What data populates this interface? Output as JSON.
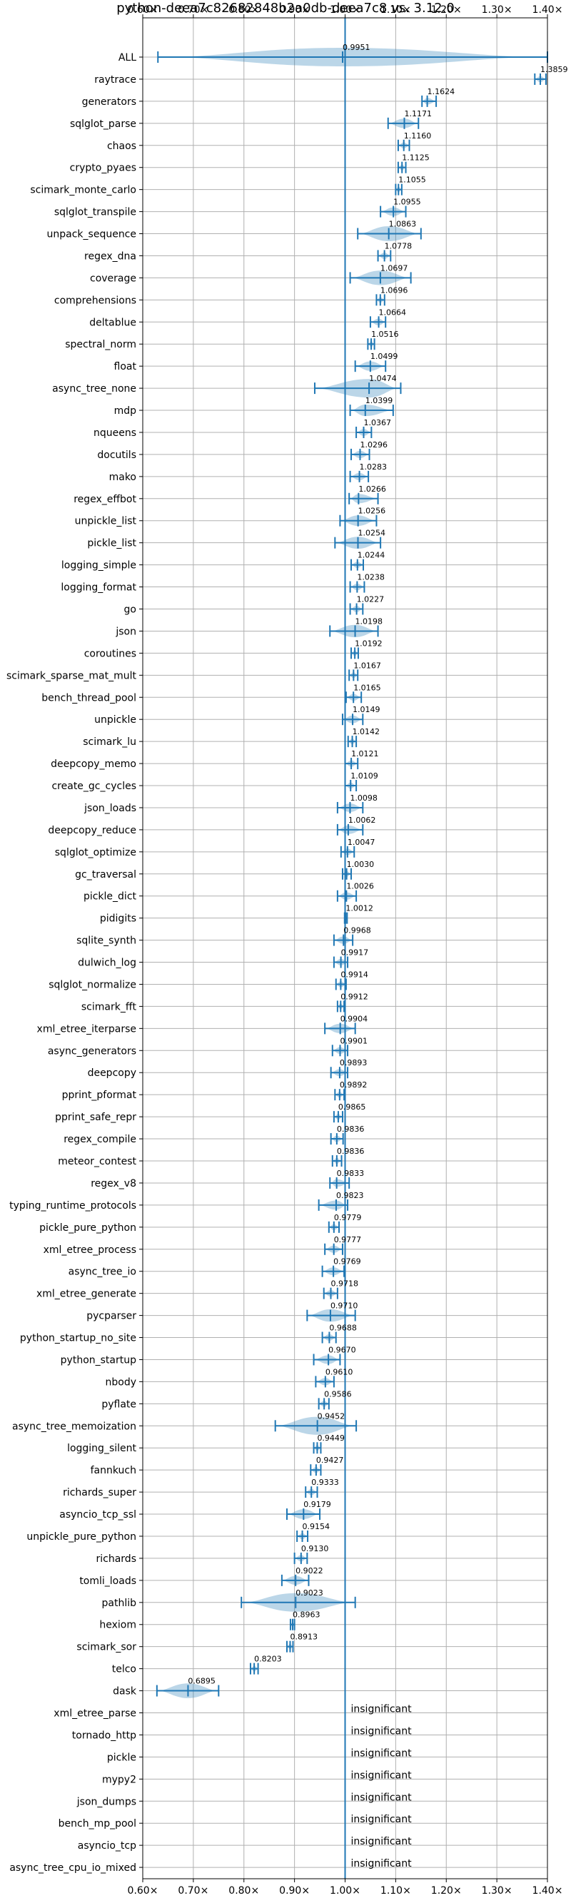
{
  "chart_data": {
    "type": "violin",
    "title": "python-deea7c82682848b2a0db-deea7c8 vs. 3.12.0",
    "xlim": [
      0.6,
      1.4
    ],
    "x_ticks": [
      0.6,
      0.7,
      0.8,
      0.9,
      1.0,
      1.1,
      1.2,
      1.3,
      1.4
    ],
    "x_tick_labels": [
      "0.60×",
      "0.70×",
      "0.80×",
      "0.90×",
      "1.00×",
      "1.10×",
      "1.20×",
      "1.30×",
      "1.40×"
    ],
    "reference_x": 1.0,
    "grid": true,
    "insignificant_label": "insignificant",
    "benchmarks": [
      {
        "name": "ALL",
        "value": 0.9951,
        "label": "0.9951",
        "low": 0.63,
        "high": 1.4
      },
      {
        "name": "raytrace",
        "value": 1.3859,
        "label": "1.3859",
        "low": 1.375,
        "high": 1.397
      },
      {
        "name": "generators",
        "value": 1.1624,
        "label": "1.1624",
        "low": 1.152,
        "high": 1.18
      },
      {
        "name": "sqlglot_parse",
        "value": 1.1171,
        "label": "1.1171",
        "low": 1.085,
        "high": 1.145
      },
      {
        "name": "chaos",
        "value": 1.116,
        "label": "1.1160",
        "low": 1.105,
        "high": 1.127
      },
      {
        "name": "crypto_pyaes",
        "value": 1.1125,
        "label": "1.1125",
        "low": 1.105,
        "high": 1.12
      },
      {
        "name": "scimark_monte_carlo",
        "value": 1.1055,
        "label": "1.1055",
        "low": 1.1,
        "high": 1.112
      },
      {
        "name": "sqlglot_transpile",
        "value": 1.0955,
        "label": "1.0955",
        "low": 1.07,
        "high": 1.12
      },
      {
        "name": "unpack_sequence",
        "value": 1.0863,
        "label": "1.0863",
        "low": 1.025,
        "high": 1.15
      },
      {
        "name": "regex_dna",
        "value": 1.0778,
        "label": "1.0778",
        "low": 1.065,
        "high": 1.09
      },
      {
        "name": "coverage",
        "value": 1.0697,
        "label": "1.0697",
        "low": 1.01,
        "high": 1.13
      },
      {
        "name": "comprehensions",
        "value": 1.0696,
        "label": "1.0696",
        "low": 1.062,
        "high": 1.078
      },
      {
        "name": "deltablue",
        "value": 1.0664,
        "label": "1.0664",
        "low": 1.05,
        "high": 1.08
      },
      {
        "name": "spectral_norm",
        "value": 1.0516,
        "label": "1.0516",
        "low": 1.045,
        "high": 1.058
      },
      {
        "name": "float",
        "value": 1.0499,
        "label": "1.0499",
        "low": 1.02,
        "high": 1.08
      },
      {
        "name": "async_tree_none",
        "value": 1.0474,
        "label": "1.0474",
        "low": 0.94,
        "high": 1.11
      },
      {
        "name": "mdp",
        "value": 1.0399,
        "label": "1.0399",
        "low": 1.01,
        "high": 1.095
      },
      {
        "name": "nqueens",
        "value": 1.0367,
        "label": "1.0367",
        "low": 1.022,
        "high": 1.052
      },
      {
        "name": "docutils",
        "value": 1.0296,
        "label": "1.0296",
        "low": 1.012,
        "high": 1.048
      },
      {
        "name": "mako",
        "value": 1.0283,
        "label": "1.0283",
        "low": 1.01,
        "high": 1.046
      },
      {
        "name": "regex_effbot",
        "value": 1.0266,
        "label": "1.0266",
        "low": 1.008,
        "high": 1.065
      },
      {
        "name": "unpickle_list",
        "value": 1.0256,
        "label": "1.0256",
        "low": 0.99,
        "high": 1.062
      },
      {
        "name": "pickle_list",
        "value": 1.0254,
        "label": "1.0254",
        "low": 0.98,
        "high": 1.07
      },
      {
        "name": "logging_simple",
        "value": 1.0244,
        "label": "1.0244",
        "low": 1.012,
        "high": 1.036
      },
      {
        "name": "logging_format",
        "value": 1.0238,
        "label": "1.0238",
        "low": 1.01,
        "high": 1.038
      },
      {
        "name": "go",
        "value": 1.0227,
        "label": "1.0227",
        "low": 1.01,
        "high": 1.035
      },
      {
        "name": "json",
        "value": 1.0198,
        "label": "1.0198",
        "low": 0.97,
        "high": 1.065
      },
      {
        "name": "coroutines",
        "value": 1.0192,
        "label": "1.0192",
        "low": 1.012,
        "high": 1.026
      },
      {
        "name": "scimark_sparse_mat_mult",
        "value": 1.0167,
        "label": "1.0167",
        "low": 1.008,
        "high": 1.025
      },
      {
        "name": "bench_thread_pool",
        "value": 1.0165,
        "label": "1.0165",
        "low": 1.002,
        "high": 1.032
      },
      {
        "name": "unpickle",
        "value": 1.0149,
        "label": "1.0149",
        "low": 0.995,
        "high": 1.035
      },
      {
        "name": "scimark_lu",
        "value": 1.0142,
        "label": "1.0142",
        "low": 1.006,
        "high": 1.022
      },
      {
        "name": "deepcopy_memo",
        "value": 1.0121,
        "label": "1.0121",
        "low": 1.0,
        "high": 1.025
      },
      {
        "name": "create_gc_cycles",
        "value": 1.0109,
        "label": "1.0109",
        "low": 1.0,
        "high": 1.022
      },
      {
        "name": "json_loads",
        "value": 1.0098,
        "label": "1.0098",
        "low": 0.985,
        "high": 1.035
      },
      {
        "name": "deepcopy_reduce",
        "value": 1.0062,
        "label": "1.0062",
        "low": 0.985,
        "high": 1.035
      },
      {
        "name": "sqlglot_optimize",
        "value": 1.0047,
        "label": "1.0047",
        "low": 0.992,
        "high": 1.018
      },
      {
        "name": "gc_traversal",
        "value": 1.003,
        "label": "1.0030",
        "low": 0.995,
        "high": 1.012
      },
      {
        "name": "pickle_dict",
        "value": 1.0026,
        "label": "1.0026",
        "low": 0.985,
        "high": 1.022
      },
      {
        "name": "pidigits",
        "value": 1.0012,
        "label": "1.0012",
        "low": 0.999,
        "high": 1.004
      },
      {
        "name": "sqlite_synth",
        "value": 0.9968,
        "label": "0.9968",
        "low": 0.978,
        "high": 1.015
      },
      {
        "name": "dulwich_log",
        "value": 0.9917,
        "label": "0.9917",
        "low": 0.978,
        "high": 1.005
      },
      {
        "name": "sqlglot_normalize",
        "value": 0.9914,
        "label": "0.9914",
        "low": 0.982,
        "high": 1.002
      },
      {
        "name": "scimark_fft",
        "value": 0.9912,
        "label": "0.9912",
        "low": 0.985,
        "high": 0.998
      },
      {
        "name": "xml_etree_iterparse",
        "value": 0.9904,
        "label": "0.9904",
        "low": 0.96,
        "high": 1.02
      },
      {
        "name": "async_generators",
        "value": 0.9901,
        "label": "0.9901",
        "low": 0.975,
        "high": 1.005
      },
      {
        "name": "deepcopy",
        "value": 0.9893,
        "label": "0.9893",
        "low": 0.972,
        "high": 1.005
      },
      {
        "name": "pprint_pformat",
        "value": 0.9892,
        "label": "0.9892",
        "low": 0.98,
        "high": 0.998
      },
      {
        "name": "pprint_safe_repr",
        "value": 0.9865,
        "label": "0.9865",
        "low": 0.978,
        "high": 0.995
      },
      {
        "name": "regex_compile",
        "value": 0.9836,
        "label": "0.9836",
        "low": 0.972,
        "high": 0.996
      },
      {
        "name": "meteor_contest",
        "value": 0.9836,
        "label": "0.9836",
        "low": 0.975,
        "high": 0.993
      },
      {
        "name": "regex_v8",
        "value": 0.9833,
        "label": "0.9833",
        "low": 0.97,
        "high": 1.008
      },
      {
        "name": "typing_runtime_protocols",
        "value": 0.9823,
        "label": "0.9823",
        "low": 0.948,
        "high": 1.005
      },
      {
        "name": "pickle_pure_python",
        "value": 0.9779,
        "label": "0.9779",
        "low": 0.968,
        "high": 0.988
      },
      {
        "name": "xml_etree_process",
        "value": 0.9777,
        "label": "0.9777",
        "low": 0.96,
        "high": 0.995
      },
      {
        "name": "async_tree_io",
        "value": 0.9769,
        "label": "0.9769",
        "low": 0.955,
        "high": 0.998
      },
      {
        "name": "xml_etree_generate",
        "value": 0.9718,
        "label": "0.9718",
        "low": 0.958,
        "high": 0.985
      },
      {
        "name": "pycparser",
        "value": 0.971,
        "label": "0.9710",
        "low": 0.925,
        "high": 1.02
      },
      {
        "name": "python_startup_no_site",
        "value": 0.9688,
        "label": "0.9688",
        "low": 0.955,
        "high": 0.982
      },
      {
        "name": "python_startup",
        "value": 0.967,
        "label": "0.9670",
        "low": 0.938,
        "high": 0.99
      },
      {
        "name": "nbody",
        "value": 0.961,
        "label": "0.9610",
        "low": 0.942,
        "high": 0.978
      },
      {
        "name": "pyflate",
        "value": 0.9586,
        "label": "0.9586",
        "low": 0.948,
        "high": 0.968
      },
      {
        "name": "async_tree_memoization",
        "value": 0.9452,
        "label": "0.9452",
        "low": 0.862,
        "high": 1.022
      },
      {
        "name": "logging_silent",
        "value": 0.9449,
        "label": "0.9449",
        "low": 0.938,
        "high": 0.952
      },
      {
        "name": "fannkuch",
        "value": 0.9427,
        "label": "0.9427",
        "low": 0.932,
        "high": 0.952
      },
      {
        "name": "richards_super",
        "value": 0.9333,
        "label": "0.9333",
        "low": 0.922,
        "high": 0.945
      },
      {
        "name": "asyncio_tcp_ssl",
        "value": 0.9179,
        "label": "0.9179",
        "low": 0.885,
        "high": 0.95
      },
      {
        "name": "unpickle_pure_python",
        "value": 0.9154,
        "label": "0.9154",
        "low": 0.905,
        "high": 0.926
      },
      {
        "name": "richards",
        "value": 0.913,
        "label": "0.9130",
        "low": 0.9,
        "high": 0.925
      },
      {
        "name": "tomli_loads",
        "value": 0.9022,
        "label": "0.9022",
        "low": 0.875,
        "high": 0.928
      },
      {
        "name": "pathlib",
        "value": 0.9023,
        "label": "0.9023",
        "low": 0.795,
        "high": 1.02
      },
      {
        "name": "hexiom",
        "value": 0.8963,
        "label": "0.8963",
        "low": 0.892,
        "high": 0.9
      },
      {
        "name": "scimark_sor",
        "value": 0.8913,
        "label": "0.8913",
        "low": 0.885,
        "high": 0.897
      },
      {
        "name": "telco",
        "value": 0.8203,
        "label": "0.8203",
        "low": 0.813,
        "high": 0.828
      },
      {
        "name": "dask",
        "value": 0.6895,
        "label": "0.6895",
        "low": 0.628,
        "high": 0.75
      }
    ],
    "insignificant": [
      "xml_etree_parse",
      "tornado_http",
      "pickle",
      "mypy2",
      "json_dumps",
      "bench_mp_pool",
      "asyncio_tcp",
      "async_tree_cpu_io_mixed"
    ]
  }
}
